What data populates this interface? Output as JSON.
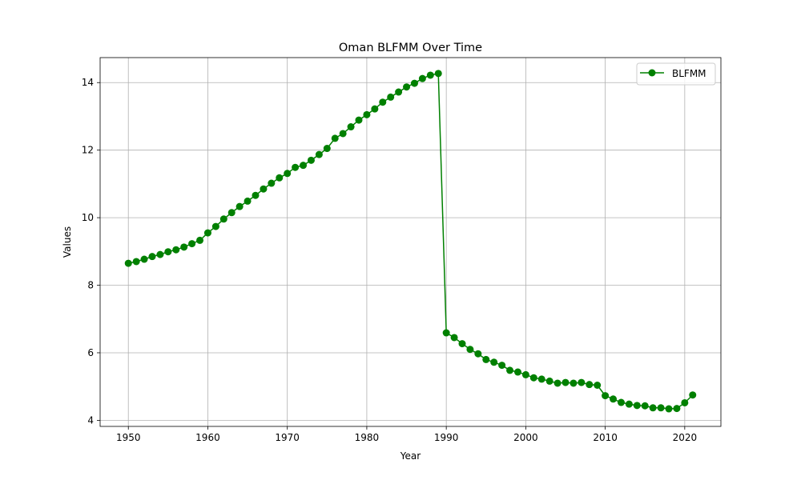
{
  "chart_data": {
    "type": "line",
    "title": "Oman BLFMM Over Time",
    "xlabel": "Year",
    "ylabel": "Values",
    "xlim": [
      1946.45,
      2024.55
    ],
    "ylim": [
      3.82,
      14.74
    ],
    "xticks": [
      1950,
      1960,
      1970,
      1980,
      1990,
      2000,
      2010,
      2020
    ],
    "yticks": [
      4,
      6,
      8,
      10,
      12,
      14
    ],
    "grid": true,
    "legend": "top-right",
    "color": "#008000",
    "series": [
      {
        "name": "BLFMM",
        "x": [
          1950,
          1951,
          1952,
          1953,
          1954,
          1955,
          1956,
          1957,
          1958,
          1959,
          1960,
          1961,
          1962,
          1963,
          1964,
          1965,
          1966,
          1967,
          1968,
          1969,
          1970,
          1971,
          1972,
          1973,
          1974,
          1975,
          1976,
          1977,
          1978,
          1979,
          1980,
          1981,
          1982,
          1983,
          1984,
          1985,
          1986,
          1987,
          1988,
          1989,
          1990,
          1991,
          1992,
          1993,
          1994,
          1995,
          1996,
          1997,
          1998,
          1999,
          2000,
          2001,
          2002,
          2003,
          2004,
          2005,
          2006,
          2007,
          2008,
          2009,
          2010,
          2011,
          2012,
          2013,
          2014,
          2015,
          2016,
          2017,
          2018,
          2019,
          2020,
          2021
        ],
        "values": [
          8.65,
          8.7,
          8.77,
          8.85,
          8.91,
          8.99,
          9.05,
          9.13,
          9.23,
          9.33,
          9.55,
          9.74,
          9.96,
          10.15,
          10.33,
          10.49,
          10.66,
          10.85,
          11.02,
          11.18,
          11.31,
          11.49,
          11.55,
          11.7,
          11.87,
          12.05,
          12.35,
          12.49,
          12.69,
          12.89,
          13.05,
          13.22,
          13.42,
          13.57,
          13.72,
          13.87,
          13.98,
          14.12,
          14.22,
          14.27,
          6.59,
          6.45,
          6.27,
          6.1,
          5.97,
          5.8,
          5.72,
          5.63,
          5.48,
          5.43,
          5.35,
          5.26,
          5.22,
          5.16,
          5.1,
          5.12,
          5.1,
          5.12,
          5.06,
          5.04,
          4.73,
          4.63,
          4.53,
          4.48,
          4.44,
          4.43,
          4.37,
          4.37,
          4.34,
          4.35,
          4.52,
          4.75
        ]
      }
    ]
  }
}
